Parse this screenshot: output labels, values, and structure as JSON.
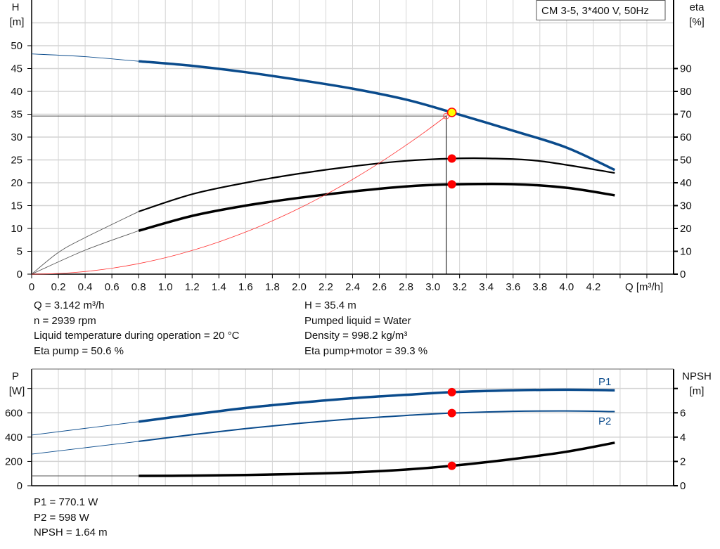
{
  "chart_data": [
    {
      "type": "line",
      "title_box": "CM 3-5, 3*400 V, 50Hz",
      "xlabel": "Q [m³/h]",
      "ylabel": [
        "H",
        "[m]"
      ],
      "y2label": [
        "eta",
        "[%]"
      ],
      "xlim": [
        0,
        4.8
      ],
      "ylim": [
        0,
        60
      ],
      "y2lim": [
        0,
        120
      ],
      "xticks": [
        0,
        0.2,
        0.4,
        0.6,
        0.8,
        1.0,
        1.2,
        1.4,
        1.6,
        1.8,
        2.0,
        2.2,
        2.4,
        2.6,
        2.8,
        3.0,
        3.2,
        3.4,
        3.6,
        3.8,
        4.0,
        4.2
      ],
      "xtick_labels": [
        "0",
        "0.2",
        "0.4",
        "0.6",
        "0.8",
        "1.0",
        "1.2",
        "1.4",
        "1.6",
        "1.8",
        "2.0",
        "2.2",
        "2.4",
        "2.6",
        "2.8",
        "3.0",
        "3.2",
        "3.4",
        "3.6",
        "3.8",
        "4.0",
        "4.2"
      ],
      "yticks": [
        0,
        5,
        10,
        15,
        20,
        25,
        30,
        35,
        40,
        45,
        50
      ],
      "y2ticks": [
        0,
        10,
        20,
        30,
        40,
        50,
        60,
        70,
        80,
        90
      ],
      "grid": true,
      "series": [
        {
          "id": "H",
          "axis": "left",
          "color": "#0a4b8c",
          "thick_from": 0.8,
          "x": [
            0,
            0.4,
            0.8,
            1.2,
            1.6,
            2.0,
            2.4,
            2.8,
            3.142,
            3.6,
            4.0,
            4.36
          ],
          "y": [
            48.2,
            47.6,
            46.6,
            45.6,
            44.2,
            42.5,
            40.6,
            38.2,
            35.4,
            31.4,
            27.7,
            22.8
          ]
        },
        {
          "id": "eta-pump",
          "axis": "right",
          "color": "#000000",
          "thick_from": 0.8,
          "x": [
            0,
            0.2,
            0.4,
            0.8,
            1.2,
            1.6,
            2.0,
            2.4,
            2.8,
            3.142,
            3.4,
            3.8,
            4.36
          ],
          "y": [
            0,
            9.5,
            16,
            27.4,
            35,
            40,
            44,
            47.2,
            49.6,
            50.6,
            50.7,
            49.5,
            44.3
          ]
        },
        {
          "id": "eta-pump-motor",
          "axis": "right",
          "color": "#000000",
          "thick_from": 0.8,
          "x": [
            0,
            0.4,
            0.8,
            1.2,
            1.6,
            2.0,
            2.4,
            2.8,
            3.142,
            3.6,
            4.0,
            4.36
          ],
          "y": [
            0,
            10.5,
            19,
            25.5,
            30,
            33.4,
            36.2,
            38.4,
            39.3,
            39.4,
            37.8,
            34.5
          ]
        },
        {
          "id": "system-curve",
          "axis": "left",
          "color": "#ff3030",
          "formula_coef": 3.6,
          "x_max": 3.1
        }
      ],
      "operating_point": {
        "Q": 3.142,
        "H": 35.4,
        "eta_pump": 50.6,
        "eta_pump_motor": 39.3
      },
      "duty_point": {
        "Q": 3.1,
        "H": 34.6
      }
    },
    {
      "type": "line",
      "ylabel": [
        "P",
        "[W]"
      ],
      "y2label": [
        "NPSH",
        "[m]"
      ],
      "xlim": [
        0,
        4.8
      ],
      "ylim": [
        0,
        960
      ],
      "y2lim": [
        0,
        9.6
      ],
      "yticks": [
        0,
        200,
        400,
        600,
        800
      ],
      "ytick_labels": [
        "0",
        "200",
        "400",
        "600",
        ""
      ],
      "y2ticks": [
        0,
        2,
        4,
        6,
        8
      ],
      "y2tick_labels": [
        "0",
        "2",
        "4",
        "6",
        ""
      ],
      "grid": true,
      "series": [
        {
          "id": "P1",
          "name": "P1",
          "axis": "left",
          "color": "#0a4b8c",
          "thick_from": 0.8,
          "x": [
            0,
            0.8,
            1.2,
            1.6,
            2.0,
            2.4,
            2.8,
            3.142,
            3.6,
            4.0,
            4.36
          ],
          "y": [
            417,
            527,
            585,
            640,
            683,
            720,
            748,
            770,
            785,
            790,
            785
          ]
        },
        {
          "id": "P2",
          "name": "P2",
          "axis": "left",
          "color": "#0a4b8c",
          "thick_from": 0.8,
          "x": [
            0,
            0.8,
            1.2,
            1.6,
            2.0,
            2.4,
            2.8,
            3.142,
            3.6,
            4.0,
            4.36
          ],
          "y": [
            260,
            365,
            420,
            470,
            513,
            550,
            578,
            598,
            612,
            615,
            610
          ]
        },
        {
          "id": "NPSH",
          "axis": "right",
          "color": "#000000",
          "thick_from": 0.8,
          "x": [
            0,
            0.8,
            1.2,
            1.6,
            2.0,
            2.4,
            2.8,
            3.142,
            3.6,
            4.0,
            4.36
          ],
          "y": [
            0.81,
            0.81,
            0.83,
            0.88,
            0.97,
            1.1,
            1.33,
            1.64,
            2.2,
            2.8,
            3.54
          ]
        }
      ],
      "operating_point": {
        "Q": 3.142,
        "P1": 770.1,
        "P2": 598,
        "NPSH": 1.64
      }
    }
  ],
  "info_top_left": [
    "Q = 3.142 m³/h",
    "n = 2939 rpm",
    "Liquid temperature during operation = 20 °C",
    "Eta pump = 50.6 %"
  ],
  "info_top_right": [
    "H = 35.4 m",
    "Pumped liquid = Water",
    "Density = 998.2 kg/m³",
    "Eta pump+motor = 39.3 %"
  ],
  "info_bottom": [
    "P1 = 770.1 W",
    "P2 = 598 W",
    "NPSH = 1.64 m"
  ],
  "colors": {
    "blue": "#0a4b8c",
    "marker": "#ff0000",
    "operating": "#ffff00",
    "grid": "#d4d4d4"
  }
}
